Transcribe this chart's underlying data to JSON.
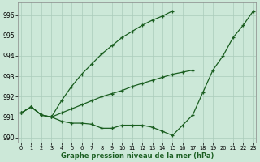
{
  "x": [
    0,
    1,
    2,
    3,
    4,
    5,
    6,
    7,
    8,
    9,
    10,
    11,
    12,
    13,
    14,
    15,
    16,
    17,
    18,
    19,
    20,
    21,
    22,
    23
  ],
  "line1": [
    991.2,
    991.5,
    991.1,
    991.0,
    990.8,
    990.7,
    990.7,
    990.65,
    990.45,
    990.45,
    990.6,
    990.6,
    990.6,
    990.5,
    990.3,
    990.1,
    990.6,
    991.1,
    992.2,
    993.3,
    994.0,
    994.9,
    995.5,
    996.2
  ],
  "line2_x": [
    0,
    1,
    2,
    3,
    4,
    5,
    6,
    7,
    8,
    9,
    10,
    11,
    12,
    13,
    14,
    15,
    16,
    17
  ],
  "line2_y": [
    991.2,
    991.5,
    991.1,
    991.0,
    991.2,
    991.4,
    991.6,
    991.8,
    992.0,
    992.15,
    992.3,
    992.5,
    992.65,
    992.8,
    992.95,
    993.1,
    993.2,
    993.3
  ],
  "line3_x": [
    0,
    1,
    2,
    3,
    4,
    5,
    6,
    7,
    8,
    9,
    10,
    11,
    12,
    13,
    14,
    15
  ],
  "line3_y": [
    991.2,
    991.5,
    991.1,
    991.0,
    991.8,
    992.5,
    993.1,
    993.6,
    994.1,
    994.5,
    994.9,
    995.2,
    995.5,
    995.75,
    995.95,
    996.2
  ],
  "bg_color": "#cce8d8",
  "grid_color": "#aaccbb",
  "line_color": "#1a5e20",
  "ylabel_ticks": [
    990,
    991,
    992,
    993,
    994,
    995,
    996
  ],
  "xlabel": "Graphe pression niveau de la mer (hPa)",
  "ylim": [
    989.75,
    996.6
  ],
  "xlim": [
    -0.3,
    23.3
  ]
}
